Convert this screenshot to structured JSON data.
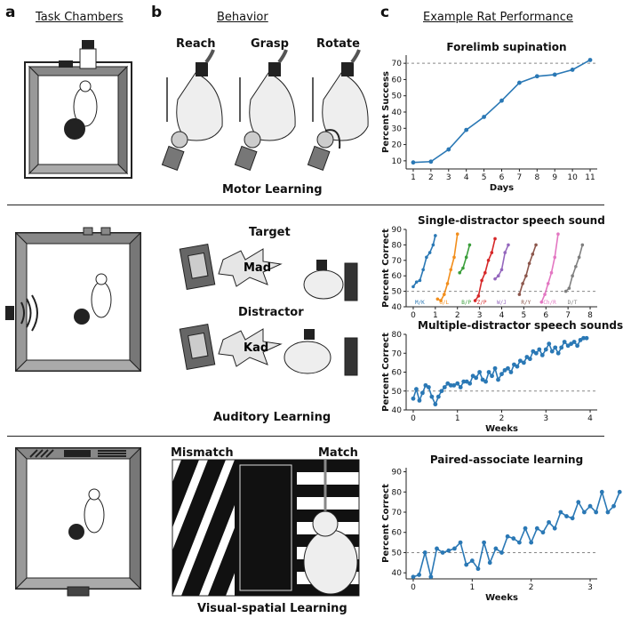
{
  "panels": {
    "a": "a",
    "b": "b",
    "c": "c"
  },
  "columns": {
    "task_chambers": "Task Chambers",
    "behavior": "Behavior",
    "example_performance": "Example Rat Performance"
  },
  "motor": {
    "steps": [
      "Reach",
      "Grasp",
      "Rotate"
    ],
    "section_title": "Motor Learning"
  },
  "auditory": {
    "target_label": "Target",
    "target_word": "Mad",
    "distractor_label": "Distractor",
    "distractor_word": "Kad",
    "section_title": "Auditory Learning"
  },
  "visual": {
    "mismatch_label": "Mismatch",
    "match_label": "Match",
    "section_title": "Visual-spatial Learning"
  },
  "colors": {
    "line_blue": "#2a78b5",
    "dashed": "#888888"
  },
  "chart_data": [
    {
      "type": "line",
      "title": "Forelimb supination",
      "xlabel": "Days",
      "ylabel": "Percent Success",
      "x": [
        1,
        2,
        3,
        4,
        5,
        6,
        7,
        8,
        9,
        10,
        11
      ],
      "values": [
        9,
        9.5,
        17,
        29,
        37,
        47,
        58,
        62,
        63,
        66,
        72
      ],
      "ylim": [
        5,
        75
      ],
      "yticks": [
        10,
        20,
        30,
        40,
        50,
        60,
        70
      ],
      "xticks": [
        1,
        2,
        3,
        4,
        5,
        6,
        7,
        8,
        9,
        10,
        11
      ],
      "reference_line": 70
    },
    {
      "type": "line",
      "title": "Single-distractor speech sound",
      "xlabel": "",
      "ylabel": "Percent Correct",
      "ylim": [
        40,
        90
      ],
      "yticks": [
        40,
        50,
        60,
        70,
        80,
        90
      ],
      "xticks": [
        0,
        1,
        2,
        3,
        4,
        5,
        6,
        7,
        8
      ],
      "reference_line": 50,
      "series": [
        {
          "name": "M/K",
          "color": "#2a78b5",
          "x": [
            0,
            0.15,
            0.3,
            0.45,
            0.6,
            0.75,
            0.9,
            1.0
          ],
          "values": [
            53,
            56,
            57,
            64,
            72,
            75,
            80,
            86
          ]
        },
        {
          "name": "G/L",
          "color": "#f28e1c",
          "x": [
            1.1,
            1.25,
            1.4,
            1.55,
            1.7,
            1.85,
            2.0
          ],
          "values": [
            45,
            44,
            48,
            55,
            64,
            72,
            87
          ]
        },
        {
          "name": "B/P",
          "color": "#3a9e3a",
          "x": [
            2.1,
            2.25,
            2.4,
            2.55
          ],
          "values": [
            62,
            65,
            72,
            80
          ]
        },
        {
          "name": "Z/P",
          "color": "#d62728",
          "x": [
            2.8,
            2.95,
            3.1,
            3.25,
            3.4,
            3.55,
            3.7
          ],
          "values": [
            44,
            47,
            57,
            62,
            70,
            75,
            84
          ]
        },
        {
          "name": "W/J",
          "color": "#9467bd",
          "x": [
            3.7,
            3.85,
            4.0,
            4.15,
            4.3
          ],
          "values": [
            58,
            60,
            64,
            75,
            80
          ]
        },
        {
          "name": "R/Y",
          "color": "#8c564b",
          "x": [
            4.8,
            4.95,
            5.1,
            5.25,
            5.4,
            5.55
          ],
          "values": [
            48,
            55,
            60,
            68,
            74,
            80
          ]
        },
        {
          "name": "Ch/R",
          "color": "#e377c2",
          "x": [
            5.8,
            5.95,
            6.1,
            6.25,
            6.4,
            6.55
          ],
          "values": [
            43,
            48,
            55,
            62,
            72,
            87
          ]
        },
        {
          "name": "D/T",
          "color": "#7f7f7f",
          "x": [
            6.9,
            7.05,
            7.2,
            7.35,
            7.5,
            7.65
          ],
          "values": [
            50,
            52,
            60,
            66,
            72,
            80
          ]
        }
      ]
    },
    {
      "type": "line",
      "title": "Multiple-distractor speech sounds",
      "xlabel": "Weeks",
      "ylabel": "Percent Correct",
      "ylim": [
        40,
        80
      ],
      "yticks": [
        40,
        50,
        60,
        70,
        80
      ],
      "xticks": [
        0,
        1,
        2,
        3,
        4
      ],
      "reference_line": 50,
      "x": [
        0,
        0.07,
        0.14,
        0.21,
        0.28,
        0.35,
        0.42,
        0.5,
        0.57,
        0.64,
        0.71,
        0.78,
        0.85,
        0.92,
        1.0,
        1.07,
        1.14,
        1.21,
        1.28,
        1.35,
        1.42,
        1.5,
        1.57,
        1.64,
        1.71,
        1.78,
        1.85,
        1.92,
        2.0,
        2.07,
        2.14,
        2.21,
        2.28,
        2.35,
        2.42,
        2.5,
        2.57,
        2.64,
        2.71,
        2.78,
        2.85,
        2.92,
        3.0,
        3.07,
        3.14,
        3.21,
        3.28,
        3.35,
        3.42,
        3.5,
        3.57,
        3.64,
        3.71,
        3.78,
        3.85,
        3.92
      ],
      "values": [
        46,
        51,
        45,
        49,
        53,
        52,
        47,
        43,
        47,
        50,
        52,
        54,
        53,
        53,
        54,
        52,
        55,
        55,
        54,
        58,
        57,
        60,
        56,
        55,
        60,
        58,
        62,
        56,
        59,
        61,
        62,
        60,
        64,
        63,
        66,
        65,
        68,
        67,
        71,
        70,
        72,
        69,
        72,
        75,
        71,
        73,
        70,
        73,
        76,
        74,
        75,
        76,
        74,
        77,
        78,
        78
      ]
    },
    {
      "type": "line",
      "title": "Paired-associate learning",
      "xlabel": "Weeks",
      "ylabel": "Percent Correct",
      "ylim": [
        37,
        92
      ],
      "yticks": [
        40,
        50,
        60,
        70,
        80,
        90
      ],
      "xticks": [
        0,
        1,
        2,
        3
      ],
      "reference_line": 50,
      "x": [
        0,
        0.1,
        0.2,
        0.3,
        0.4,
        0.5,
        0.6,
        0.7,
        0.8,
        0.9,
        1.0,
        1.1,
        1.2,
        1.3,
        1.4,
        1.5,
        1.6,
        1.7,
        1.8,
        1.9,
        2.0,
        2.1,
        2.2,
        2.3,
        2.4,
        2.5,
        2.6,
        2.7,
        2.8,
        2.9,
        3.0,
        3.1,
        3.2,
        3.3,
        3.4,
        3.5
      ],
      "values": [
        38,
        39,
        50,
        38,
        52,
        50,
        51,
        52,
        55,
        44,
        46,
        42,
        55,
        45,
        52,
        50,
        58,
        57,
        55,
        62,
        55,
        62,
        60,
        65,
        62,
        70,
        68,
        67,
        75,
        70,
        73,
        70,
        80,
        70,
        73,
        80
      ]
    }
  ]
}
